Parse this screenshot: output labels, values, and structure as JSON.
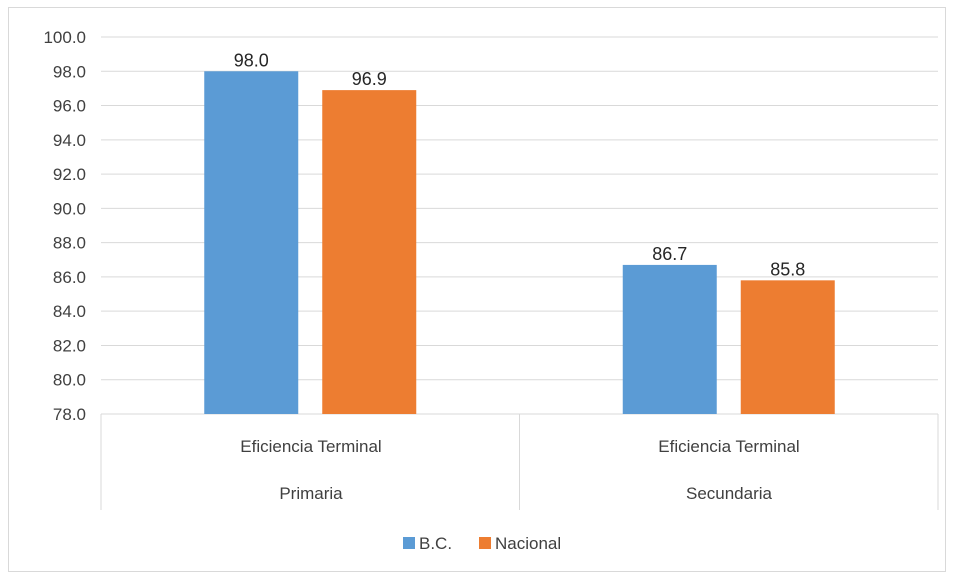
{
  "colors": {
    "bc": "#5b9bd5",
    "nacional": "#ed7d31",
    "grid": "#d9d9d9",
    "text": "#404040"
  },
  "chart_data": {
    "type": "bar",
    "categories": [
      [
        "Eficiencia Terminal",
        "Primaria"
      ],
      [
        "Eficiencia Terminal",
        "Secundaria"
      ]
    ],
    "series": [
      {
        "name": "B.C.",
        "values": [
          98.0,
          86.7
        ],
        "value_labels": [
          "98.0",
          "86.7"
        ]
      },
      {
        "name": "Nacional",
        "values": [
          96.9,
          85.8
        ],
        "value_labels": [
          "96.9",
          "85.8"
        ]
      }
    ],
    "ylim": [
      78.0,
      100.0
    ],
    "yticks": [
      "78.0",
      "80.0",
      "82.0",
      "84.0",
      "86.0",
      "88.0",
      "90.0",
      "92.0",
      "94.0",
      "96.0",
      "98.0",
      "100.0"
    ],
    "grid": true,
    "legend": "bottom"
  }
}
